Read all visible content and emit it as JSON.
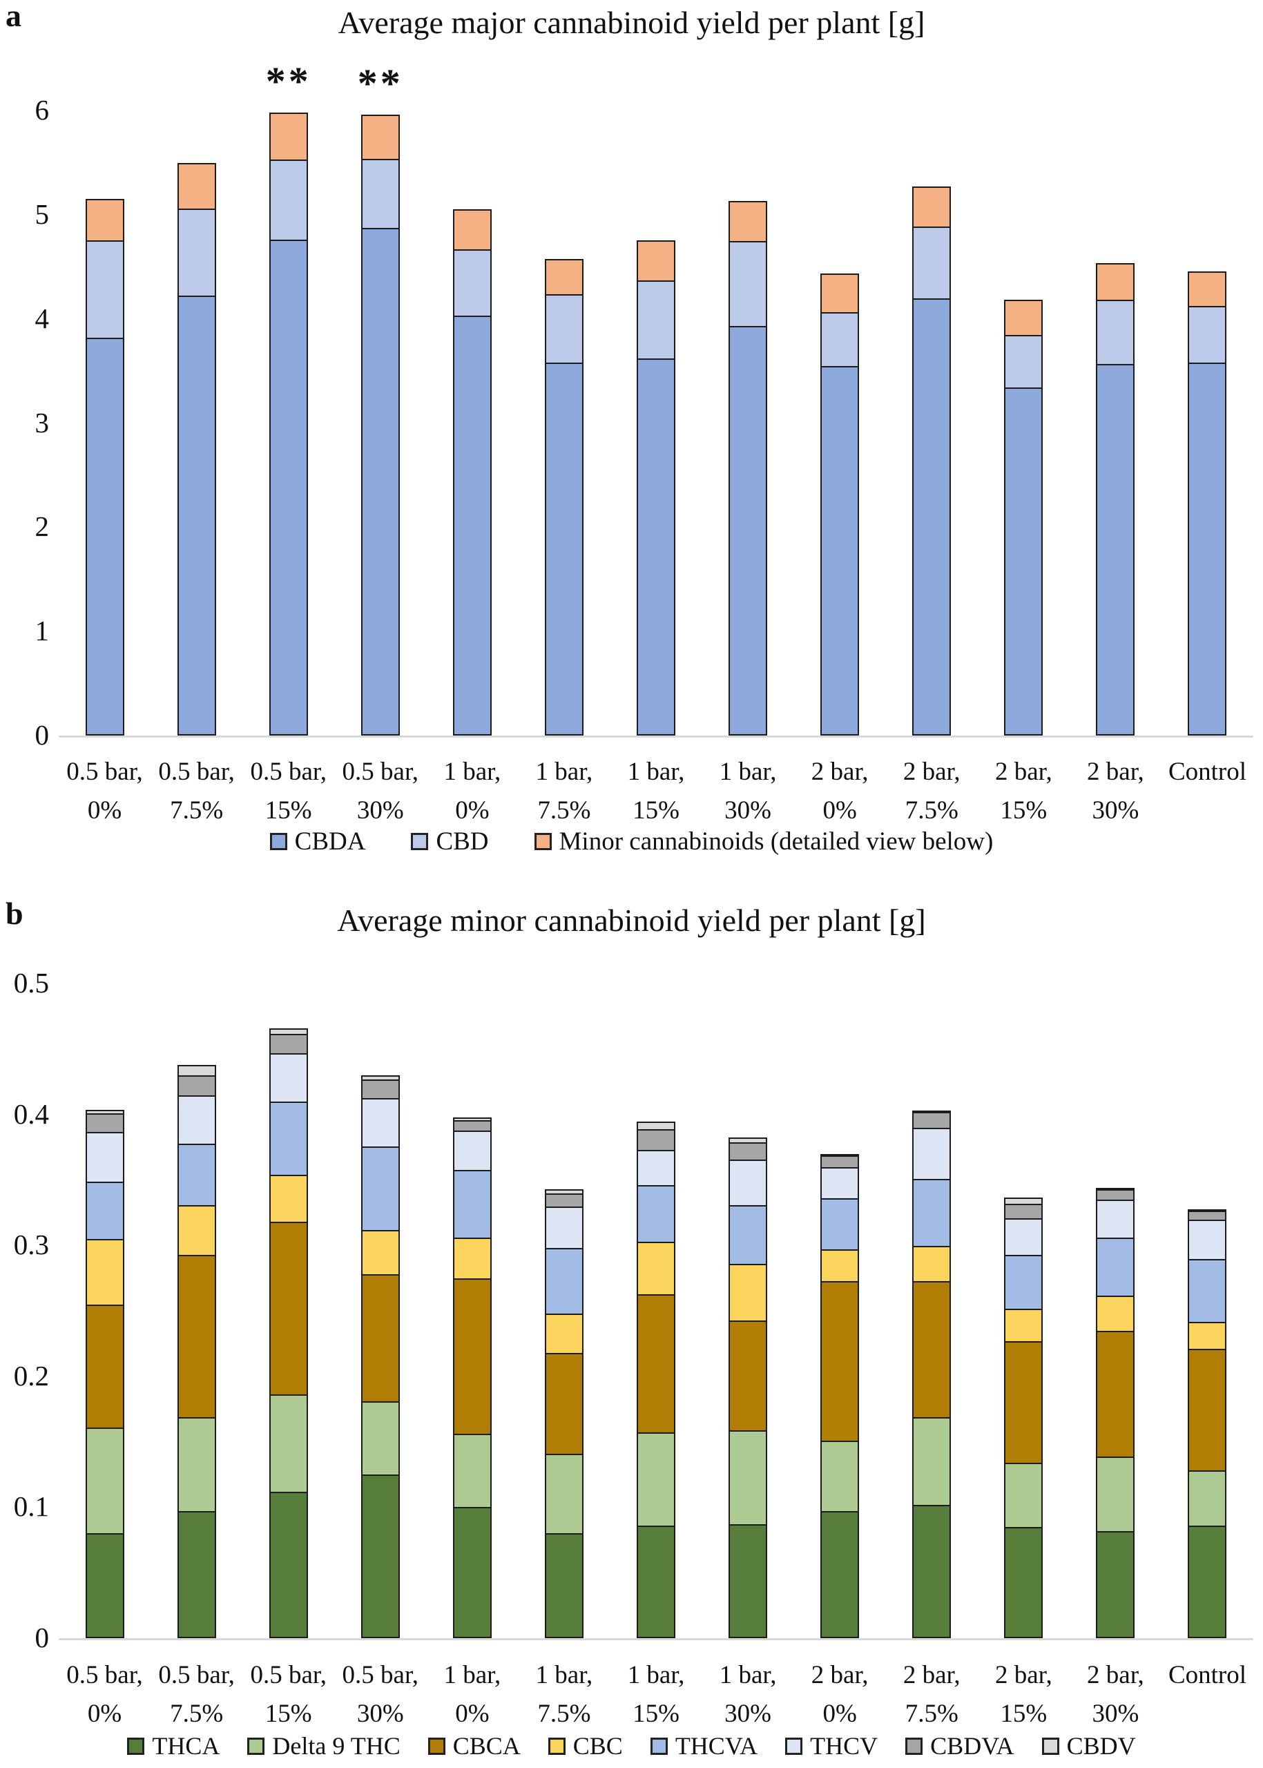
{
  "chart_data": [
    {
      "type": "bar",
      "stacked": true,
      "panel_label": "a",
      "title": "Average major cannabinoid yield per plant [g]",
      "ylim": [
        0,
        6
      ],
      "y_ticks": [
        "0",
        "1",
        "2",
        "3",
        "4",
        "5",
        "6"
      ],
      "grid": "off",
      "legend_position": "bottom",
      "categories": [
        [
          "0.5 bar,",
          "0%"
        ],
        [
          "0.5 bar,",
          "7.5%"
        ],
        [
          "0.5 bar,",
          "15%"
        ],
        [
          "0.5 bar,",
          "30%"
        ],
        [
          "1 bar,",
          "0%"
        ],
        [
          "1 bar,",
          "7.5%"
        ],
        [
          "1 bar,",
          "15%"
        ],
        [
          "1 bar,",
          "30%"
        ],
        [
          "2 bar,",
          "0%"
        ],
        [
          "2 bar,",
          "7.5%"
        ],
        [
          "2 bar,",
          "15%"
        ],
        [
          "2 bar,",
          "30%"
        ],
        [
          "Control"
        ]
      ],
      "annotations": [
        "",
        "",
        "**",
        "**",
        "",
        "",
        "",
        "",
        "",
        "",
        "",
        "",
        ""
      ],
      "series": [
        {
          "name": "CBDA",
          "color": "#8EA9DB",
          "values": [
            3.82,
            4.22,
            4.76,
            4.87,
            4.03,
            3.58,
            3.62,
            3.93,
            3.55,
            4.2,
            3.34,
            3.57,
            3.58
          ]
        },
        {
          "name": "CBD",
          "color": "#BCC9E8",
          "values": [
            0.95,
            0.85,
            0.78,
            0.68,
            0.65,
            0.67,
            0.76,
            0.83,
            0.53,
            0.7,
            0.52,
            0.63,
            0.56
          ]
        },
        {
          "name": "Minor cannabinoids (detailed view below)",
          "color": "#F4B183",
          "values": [
            0.41,
            0.45,
            0.47,
            0.44,
            0.4,
            0.35,
            0.4,
            0.4,
            0.38,
            0.4,
            0.35,
            0.36,
            0.34
          ]
        }
      ]
    },
    {
      "type": "bar",
      "stacked": true,
      "panel_label": "b",
      "title": "Average minor cannabinoid yield per plant [g]",
      "ylim": [
        0,
        0.5
      ],
      "y_ticks": [
        "0",
        "0.1",
        "0.2",
        "0.3",
        "0.4",
        "0.5"
      ],
      "grid": "off",
      "legend_position": "bottom",
      "categories": [
        [
          "0.5 bar,",
          "0%"
        ],
        [
          "0.5 bar,",
          "7.5%"
        ],
        [
          "0.5 bar,",
          "15%"
        ],
        [
          "0.5 bar,",
          "30%"
        ],
        [
          "1 bar,",
          "0%"
        ],
        [
          "1 bar,",
          "7.5%"
        ],
        [
          "1 bar,",
          "15%"
        ],
        [
          "1 bar,",
          "30%"
        ],
        [
          "2 bar,",
          "0%"
        ],
        [
          "2 bar,",
          "7.5%"
        ],
        [
          "2 bar,",
          "15%"
        ],
        [
          "2 bar,",
          "30%"
        ],
        [
          "Control"
        ]
      ],
      "annotations": [
        "",
        "",
        "",
        "",
        "",
        "",
        "",
        "",
        "",
        "",
        "",
        "",
        ""
      ],
      "series": [
        {
          "name": "THCA",
          "color": "#567D3A",
          "values": [
            0.08,
            0.097,
            0.112,
            0.125,
            0.1,
            0.08,
            0.086,
            0.087,
            0.097,
            0.102,
            0.085,
            0.082,
            0.086
          ]
        },
        {
          "name": "Delta 9 THC",
          "color": "#AFCB94",
          "values": [
            0.082,
            0.073,
            0.075,
            0.057,
            0.057,
            0.062,
            0.072,
            0.073,
            0.055,
            0.068,
            0.05,
            0.058,
            0.043
          ]
        },
        {
          "name": "CBCA",
          "color": "#B07E04",
          "values": [
            0.095,
            0.125,
            0.133,
            0.098,
            0.12,
            0.078,
            0.107,
            0.085,
            0.123,
            0.105,
            0.094,
            0.097,
            0.094
          ]
        },
        {
          "name": "CBC",
          "color": "#FBD45E",
          "values": [
            0.051,
            0.039,
            0.037,
            0.035,
            0.032,
            0.031,
            0.041,
            0.044,
            0.025,
            0.028,
            0.026,
            0.028,
            0.022
          ]
        },
        {
          "name": "THCVA",
          "color": "#A2BCE6",
          "values": [
            0.045,
            0.048,
            0.057,
            0.065,
            0.053,
            0.051,
            0.044,
            0.046,
            0.04,
            0.052,
            0.042,
            0.045,
            0.049
          ]
        },
        {
          "name": "THCV",
          "color": "#DDE5F5",
          "values": [
            0.039,
            0.038,
            0.038,
            0.038,
            0.031,
            0.033,
            0.028,
            0.036,
            0.025,
            0.04,
            0.029,
            0.03,
            0.031
          ]
        },
        {
          "name": "CBDVA",
          "color": "#A6A6A6",
          "values": [
            0.015,
            0.016,
            0.016,
            0.015,
            0.009,
            0.011,
            0.017,
            0.014,
            0.01,
            0.013,
            0.012,
            0.009,
            0.008
          ]
        },
        {
          "name": "CBDV",
          "color": "#D9D9D9",
          "values": [
            0.004,
            0.009,
            0.005,
            0.004,
            0.003,
            0.004,
            0.007,
            0.005,
            0.002,
            0.002,
            0.006,
            0.002,
            0.002
          ]
        }
      ]
    }
  ]
}
